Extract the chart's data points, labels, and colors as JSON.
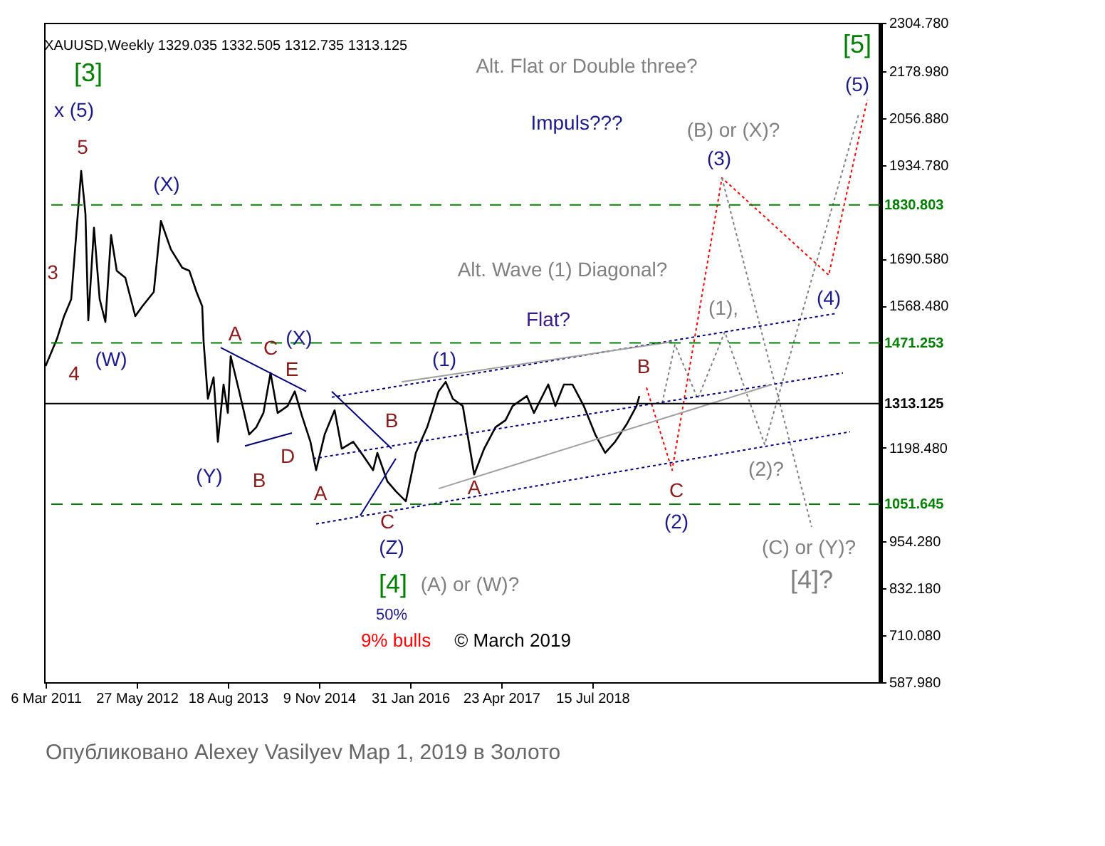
{
  "chart_data": {
    "type": "line",
    "title": "XAUUSD,Weekly  1329.035 1332.505 1312.735 1313.125",
    "xlim": [
      "2011-02-27",
      "2022-05-29"
    ],
    "xticks": [
      {
        "value": "2011-03-06",
        "label": "6 Mar 2011"
      },
      {
        "value": "2012-05-27",
        "label": "27 May 2012"
      },
      {
        "value": "2013-08-18",
        "label": "18 Aug 2013"
      },
      {
        "value": "2014-11-09",
        "label": "9 Nov 2014"
      },
      {
        "value": "2016-01-31",
        "label": "31 Jan 2016"
      },
      {
        "value": "2017-04-23",
        "label": "23 Apr 2017"
      },
      {
        "value": "2018-07-15",
        "label": "15 Jul 2018"
      }
    ],
    "ylim": [
      587.98,
      2304.78
    ],
    "yticks": [
      {
        "value": 2304.78,
        "label": "2304.780"
      },
      {
        "value": 2178.98,
        "label": "2178.980"
      },
      {
        "value": 2056.88,
        "label": "2056.880"
      },
      {
        "value": 1934.78,
        "label": "1934.780"
      },
      {
        "value": 1690.58,
        "label": "1690.580"
      },
      {
        "value": 1568.48,
        "label": "1568.480"
      },
      {
        "value": 1198.48,
        "label": "1198.480"
      },
      {
        "value": 954.28,
        "label": "954.280"
      },
      {
        "value": 832.18,
        "label": "832.180"
      },
      {
        "value": 710.08,
        "label": "710.080"
      },
      {
        "value": 587.98,
        "label": "587.980"
      }
    ],
    "marker": "none",
    "series": [
      {
        "color": "#000000",
        "line_style": "solid",
        "x": [
          "2011-03-06",
          "2011-05-01",
          "2011-06-05",
          "2011-07-10",
          "2011-08-28",
          "2011-09-18",
          "2011-10-02",
          "2011-10-30",
          "2011-11-27",
          "2011-12-25",
          "2012-01-22",
          "2012-02-19",
          "2012-04-01",
          "2012-05-20",
          "2012-06-24",
          "2012-08-19",
          "2012-09-23",
          "2012-11-11",
          "2013-01-06",
          "2013-02-10",
          "2013-03-17",
          "2013-04-14",
          "2013-04-21",
          "2013-05-12",
          "2013-06-09",
          "2013-06-30",
          "2013-07-28",
          "2013-08-18",
          "2013-09-01",
          "2013-10-13",
          "2013-12-01",
          "2014-01-05",
          "2014-02-09",
          "2014-03-16",
          "2014-04-20",
          "2014-06-08",
          "2014-07-13",
          "2014-08-17",
          "2014-09-28",
          "2014-10-26",
          "2014-12-07",
          "2015-01-25",
          "2015-03-01",
          "2015-04-26",
          "2015-06-14",
          "2015-08-02",
          "2015-08-23",
          "2015-10-11",
          "2015-11-22",
          "2016-01-10",
          "2016-02-28",
          "2016-04-24",
          "2016-06-19",
          "2016-07-24",
          "2016-08-28",
          "2016-10-16",
          "2016-11-20",
          "2016-12-11",
          "2017-01-29",
          "2017-03-26",
          "2017-05-14",
          "2017-06-18",
          "2017-08-27",
          "2017-10-01",
          "2017-12-10",
          "2018-01-14",
          "2018-02-25",
          "2018-04-08",
          "2018-06-03",
          "2018-07-29",
          "2018-09-16",
          "2018-11-04",
          "2018-12-30",
          "2019-02-17",
          "2019-03-03"
        ],
        "values": [
          1411,
          1482,
          1541,
          1585,
          1919,
          1808,
          1530,
          1771,
          1585,
          1526,
          1752,
          1659,
          1641,
          1541,
          1567,
          1604,
          1789,
          1715,
          1667,
          1659,
          1604,
          1567,
          1474,
          1326,
          1382,
          1214,
          1363,
          1289,
          1437,
          1345,
          1233,
          1252,
          1289,
          1393,
          1289,
          1307,
          1345,
          1282,
          1214,
          1140,
          1233,
          1296,
          1196,
          1214,
          1178,
          1140,
          1185,
          1111,
          1085,
          1059,
          1185,
          1252,
          1345,
          1370,
          1326,
          1307,
          1196,
          1129,
          1196,
          1252,
          1270,
          1307,
          1333,
          1289,
          1363,
          1307,
          1363,
          1363,
          1307,
          1233,
          1185,
          1214,
          1259,
          1307,
          1333
        ]
      },
      {
        "color": "#ff0000",
        "line_style": "dotted",
        "x": [
          "2019-04-07",
          "2019-08-11",
          "2020-04-12",
          "2021-09-19",
          "2022-03-27"
        ],
        "values": [
          1355,
          1140,
          1901,
          1648,
          2104
        ]
      },
      {
        "color": "#808080",
        "line_style": "dotted",
        "x": [
          "2019-06-23",
          "2019-08-25",
          "2019-12-15",
          "2020-04-26",
          "2020-11-08",
          "2022-02-13"
        ],
        "values": [
          1315,
          1467,
          1326,
          1500,
          1207,
          2067
        ]
      },
      {
        "color": "#808080",
        "line_style": "dotted",
        "x": [
          "2020-04-12",
          "2021-06-27"
        ],
        "values": [
          1901,
          992
        ]
      },
      {
        "color": "#000080",
        "line_style": "dotted",
        "x": [
          "2015-01-11",
          "2021-10-24"
        ],
        "values": [
          1330,
          1548
        ]
      },
      {
        "color": "#000080",
        "line_style": "dotted",
        "x": [
          "2014-10-12",
          "2021-11-28"
        ],
        "values": [
          1170,
          1393
        ]
      },
      {
        "color": "#000080",
        "line_style": "dotted",
        "x": [
          "2014-10-26",
          "2022-01-02"
        ],
        "values": [
          1000,
          1240
        ]
      },
      {
        "color": "#a0a0a0",
        "line_style": "solid",
        "x": [
          "2015-12-20",
          "2019-08-11"
        ],
        "values": [
          1370,
          1474
        ]
      },
      {
        "color": "#a0a0a0",
        "line_style": "solid",
        "x": [
          "2016-06-19",
          "2020-12-13"
        ],
        "values": [
          1092,
          1363
        ]
      },
      {
        "color": "#000080",
        "line_style": "solid",
        "x": [
          "2013-07-14",
          "2014-09-07"
        ],
        "values": [
          1459,
          1345
        ]
      },
      {
        "color": "#000080",
        "line_style": "solid",
        "x": [
          "2013-11-10",
          "2014-06-29"
        ],
        "values": [
          1203,
          1237
        ]
      },
      {
        "color": "#000080",
        "line_style": "solid",
        "x": [
          "2015-01-11",
          "2015-11-01"
        ],
        "values": [
          1345,
          1196
        ]
      },
      {
        "color": "#000080",
        "line_style": "solid",
        "x": [
          "2015-05-31",
          "2015-11-22"
        ],
        "values": [
          1022,
          1170
        ]
      }
    ],
    "ref_lines": [
      {
        "axis": "y",
        "value": 1830.803,
        "label": "1830.803",
        "color": "#008000",
        "line_style": "dashed"
      },
      {
        "axis": "y",
        "value": 1471.253,
        "label": "1471.253",
        "color": "#008000",
        "line_style": "dashed"
      },
      {
        "axis": "y",
        "value": 1313.125,
        "label": "1313.125",
        "color": "#000000",
        "line_style": "solid"
      },
      {
        "axis": "y",
        "value": 1051.645,
        "label": "1051.645",
        "color": "#008000",
        "line_style": "dashed"
      }
    ],
    "annotations": [
      "[3]",
      "x (5)",
      "5",
      "3",
      "4",
      "(W)",
      "(X)",
      "A",
      "C",
      "(X)",
      "E",
      "B",
      "D",
      "(Y)",
      "A",
      "B",
      "C",
      "(Z)",
      "[4]",
      "(A) or (W)?",
      "50%",
      "9% bulls",
      "© March 2019",
      "(1)",
      "A",
      "B",
      "C",
      "(2)",
      "(3)",
      "(B) or (X)?",
      "(1),",
      "(4)",
      "(2)?",
      "(C) or (Y)?",
      "[4]?",
      "[5]",
      "(5)",
      "Alt. Flat or Double three?",
      "Impuls???",
      "Alt. Wave (1) Diagonal?",
      "Flat?",
      "Опубликовано Alexey Vasilyev Мар 1, 2019 в Золото"
    ]
  }
}
